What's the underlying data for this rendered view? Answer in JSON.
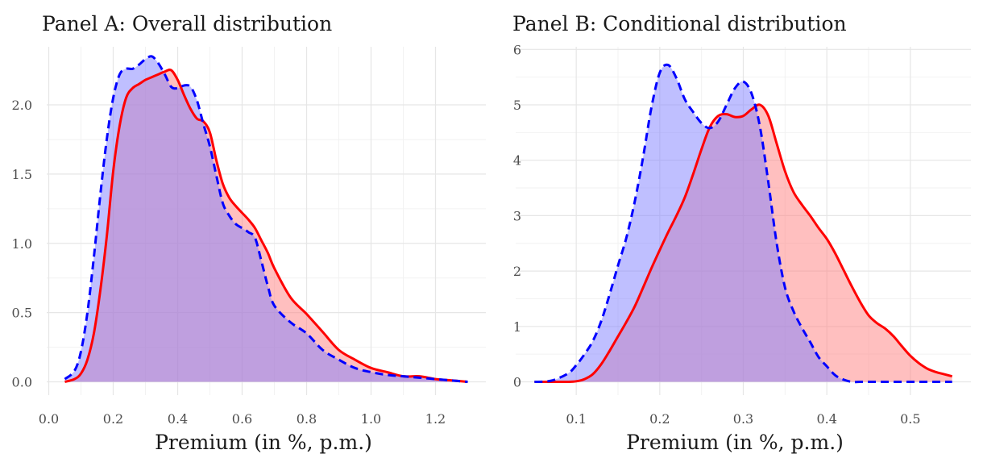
{
  "chart_data": [
    {
      "type": "area",
      "title": "Panel A: Overall distribution",
      "xlabel": "Premium (in %, p.m.)",
      "ylabel": "",
      "xlim": [
        0.05,
        1.3
      ],
      "ylim": [
        0,
        2.4
      ],
      "xticks": [
        0.0,
        0.2,
        0.4,
        0.6,
        0.8,
        1.0,
        1.2
      ],
      "yticks": [
        0.0,
        0.5,
        1.0,
        1.5,
        2.0
      ],
      "xtick_labels": [
        "0.0",
        "0.2",
        "0.4",
        "0.6",
        "0.8",
        "1.0",
        "1.2"
      ],
      "ytick_labels": [
        "0.0",
        "0.5",
        "1.0",
        "1.5",
        "2.0"
      ],
      "grid": true,
      "series": [
        {
          "color": "#ff0000",
          "fill": "#ff8080",
          "line_style": "solid",
          "x": [
            0.05,
            0.08,
            0.1,
            0.12,
            0.14,
            0.16,
            0.18,
            0.2,
            0.22,
            0.24,
            0.26,
            0.28,
            0.3,
            0.32,
            0.34,
            0.36,
            0.38,
            0.4,
            0.42,
            0.44,
            0.46,
            0.48,
            0.5,
            0.52,
            0.54,
            0.56,
            0.58,
            0.6,
            0.62,
            0.64,
            0.66,
            0.68,
            0.7,
            0.75,
            0.8,
            0.85,
            0.9,
            0.95,
            1.0,
            1.05,
            1.1,
            1.15,
            1.2,
            1.25,
            1.3
          ],
          "y": [
            0.0,
            0.02,
            0.06,
            0.16,
            0.35,
            0.66,
            1.05,
            1.52,
            1.85,
            2.05,
            2.12,
            2.15,
            2.18,
            2.2,
            2.22,
            2.24,
            2.25,
            2.18,
            2.07,
            1.97,
            1.9,
            1.88,
            1.8,
            1.6,
            1.43,
            1.33,
            1.27,
            1.22,
            1.17,
            1.11,
            1.02,
            0.93,
            0.82,
            0.61,
            0.49,
            0.36,
            0.23,
            0.16,
            0.1,
            0.07,
            0.04,
            0.04,
            0.02,
            0.01,
            0.0
          ]
        },
        {
          "color": "#0000ff",
          "fill": "#8080ff",
          "line_style": "dashed",
          "x": [
            0.05,
            0.08,
            0.1,
            0.12,
            0.14,
            0.16,
            0.18,
            0.2,
            0.22,
            0.24,
            0.26,
            0.28,
            0.3,
            0.32,
            0.34,
            0.36,
            0.38,
            0.4,
            0.42,
            0.44,
            0.46,
            0.48,
            0.5,
            0.52,
            0.54,
            0.56,
            0.58,
            0.6,
            0.62,
            0.64,
            0.66,
            0.68,
            0.7,
            0.75,
            0.8,
            0.85,
            0.9,
            0.95,
            1.0,
            1.05,
            1.1,
            1.15,
            1.2,
            1.25,
            1.3
          ],
          "y": [
            0.02,
            0.08,
            0.22,
            0.5,
            0.9,
            1.35,
            1.75,
            2.05,
            2.22,
            2.26,
            2.26,
            2.29,
            2.33,
            2.35,
            2.3,
            2.22,
            2.13,
            2.12,
            2.14,
            2.13,
            2.03,
            1.86,
            1.7,
            1.49,
            1.29,
            1.2,
            1.14,
            1.11,
            1.08,
            1.04,
            0.87,
            0.69,
            0.55,
            0.43,
            0.35,
            0.23,
            0.16,
            0.1,
            0.07,
            0.05,
            0.04,
            0.03,
            0.02,
            0.01,
            0.0
          ]
        }
      ]
    },
    {
      "type": "area",
      "title": "Panel B: Conditional distribution",
      "xlabel": "Premium (in %, p.m.)",
      "ylabel": "",
      "xlim": [
        0.05,
        0.55
      ],
      "ylim": [
        0,
        6
      ],
      "xticks": [
        0.1,
        0.2,
        0.3,
        0.4,
        0.5
      ],
      "yticks": [
        0,
        1,
        2,
        3,
        4,
        5,
        6
      ],
      "xtick_labels": [
        "0.1",
        "0.2",
        "0.3",
        "0.4",
        "0.5"
      ],
      "ytick_labels": [
        "0",
        "1",
        "2",
        "3",
        "4",
        "5",
        "6"
      ],
      "grid": true,
      "series": [
        {
          "color": "#ff0000",
          "fill": "#ff8080",
          "line_style": "solid",
          "x": [
            0.05,
            0.07,
            0.09,
            0.1,
            0.11,
            0.12,
            0.13,
            0.14,
            0.15,
            0.16,
            0.17,
            0.18,
            0.19,
            0.2,
            0.21,
            0.22,
            0.23,
            0.24,
            0.25,
            0.26,
            0.27,
            0.28,
            0.29,
            0.3,
            0.31,
            0.32,
            0.33,
            0.34,
            0.35,
            0.36,
            0.37,
            0.38,
            0.39,
            0.4,
            0.41,
            0.42,
            0.43,
            0.44,
            0.45,
            0.46,
            0.47,
            0.48,
            0.49,
            0.5,
            0.51,
            0.52,
            0.53,
            0.54,
            0.55
          ],
          "y": [
            0.0,
            0.0,
            0.0,
            0.01,
            0.05,
            0.14,
            0.32,
            0.56,
            0.82,
            1.08,
            1.36,
            1.7,
            2.05,
            2.38,
            2.7,
            3.0,
            3.33,
            3.75,
            4.2,
            4.6,
            4.8,
            4.83,
            4.78,
            4.8,
            4.92,
            5.0,
            4.8,
            4.3,
            3.8,
            3.43,
            3.2,
            3.0,
            2.78,
            2.58,
            2.32,
            2.02,
            1.72,
            1.44,
            1.2,
            1.06,
            0.96,
            0.82,
            0.64,
            0.47,
            0.34,
            0.24,
            0.18,
            0.14,
            0.1
          ]
        },
        {
          "color": "#0000ff",
          "fill": "#8080ff",
          "line_style": "dashed",
          "x": [
            0.05,
            0.07,
            0.09,
            0.1,
            0.11,
            0.12,
            0.13,
            0.14,
            0.15,
            0.16,
            0.17,
            0.18,
            0.19,
            0.2,
            0.21,
            0.22,
            0.23,
            0.24,
            0.25,
            0.26,
            0.27,
            0.28,
            0.29,
            0.3,
            0.31,
            0.32,
            0.33,
            0.34,
            0.35,
            0.36,
            0.37,
            0.38,
            0.39,
            0.4,
            0.41,
            0.42,
            0.43,
            0.44,
            0.45,
            0.46,
            0.47,
            0.48,
            0.49,
            0.5,
            0.51,
            0.52,
            0.53,
            0.54,
            0.55
          ],
          "y": [
            0.0,
            0.02,
            0.15,
            0.3,
            0.5,
            0.74,
            1.1,
            1.58,
            2.1,
            2.6,
            3.25,
            4.05,
            4.95,
            5.58,
            5.72,
            5.48,
            5.1,
            4.87,
            4.67,
            4.58,
            4.7,
            5.0,
            5.3,
            5.42,
            5.2,
            4.6,
            3.6,
            2.5,
            1.7,
            1.28,
            0.98,
            0.72,
            0.45,
            0.28,
            0.12,
            0.04,
            0.0,
            0.0,
            0.0,
            0.0,
            0.0,
            0.0,
            0.0,
            0.0,
            0.0,
            0.0,
            0.0,
            0.0,
            0.0
          ]
        }
      ]
    }
  ]
}
